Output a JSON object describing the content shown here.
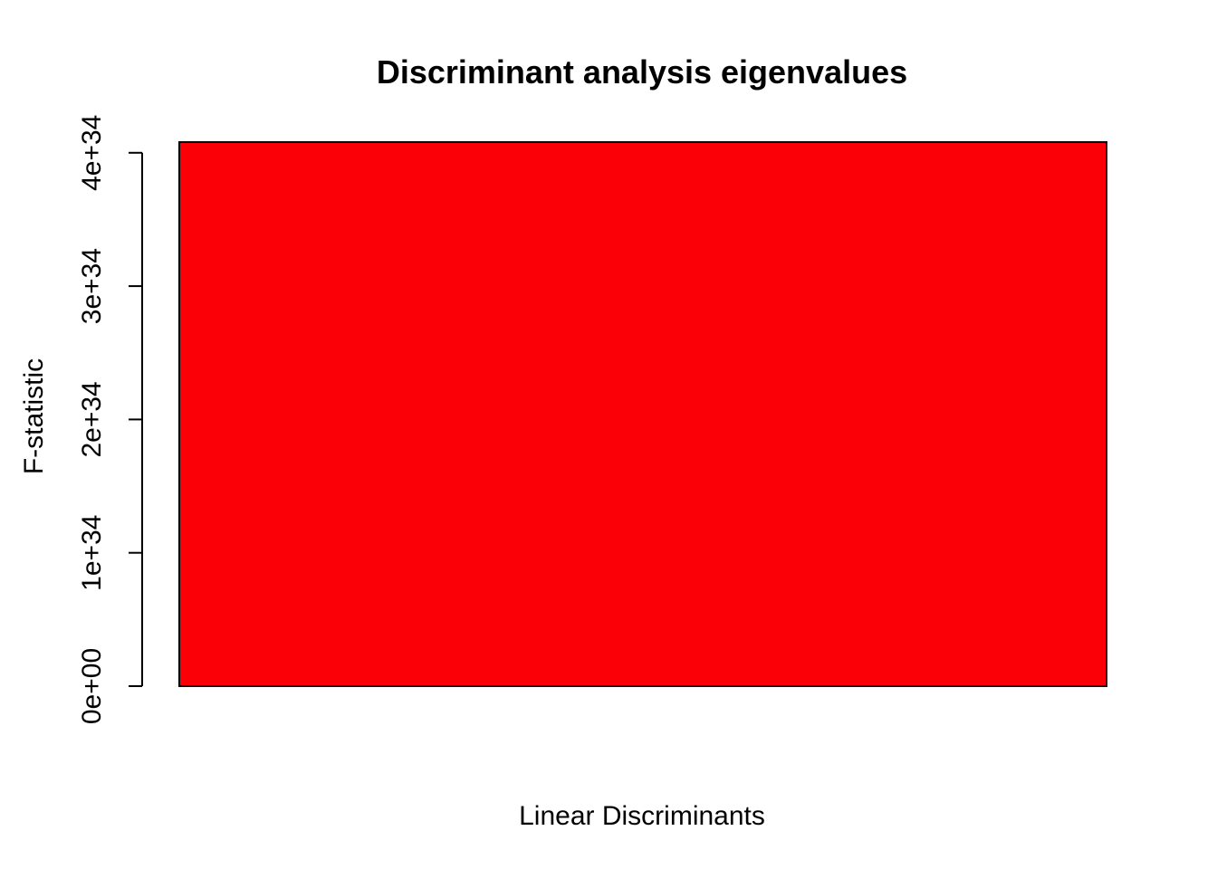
{
  "chart_data": {
    "type": "bar",
    "title": "Discriminant analysis eigenvalues",
    "xlabel": "Linear Discriminants",
    "ylabel": "F-statistic",
    "categories": [
      ""
    ],
    "values": [
      4.08e+34
    ],
    "ylim": [
      0,
      4.08e+34
    ],
    "yticks": [
      0,
      1e+34,
      2e+34,
      3e+34,
      4e+34
    ],
    "ytick_labels": [
      "0e+00",
      "1e+34",
      "2e+34",
      "3e+34",
      "4e+34"
    ],
    "bar_color": "#fb0007",
    "bar_border_color": "#000000",
    "grid": false,
    "legend": "none"
  }
}
